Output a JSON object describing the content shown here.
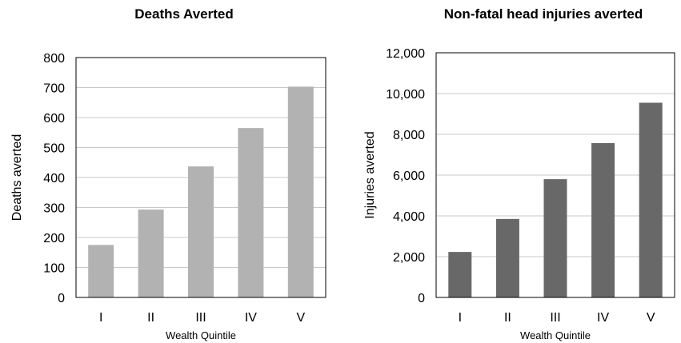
{
  "chart_data": [
    {
      "type": "bar",
      "title": "Deaths Averted",
      "xlabel": "Wealth Quintile",
      "ylabel": "Deaths averted",
      "categories": [
        "I",
        "II",
        "III",
        "IV",
        "V"
      ],
      "values": [
        175,
        293,
        437,
        565,
        703
      ],
      "ylim": [
        0,
        800
      ],
      "yticks": [
        "0",
        "100",
        "200",
        "300",
        "400",
        "500",
        "600",
        "700",
        "800"
      ],
      "bar_color": "#b2b2b2",
      "grid": true
    },
    {
      "type": "bar",
      "title": "Non-fatal head injuries averted",
      "xlabel": "Wealth Quintile",
      "ylabel": "Injuries averted",
      "categories": [
        "I",
        "II",
        "III",
        "IV",
        "V"
      ],
      "values": [
        2230,
        3850,
        5800,
        7570,
        9550
      ],
      "ylim": [
        0,
        12000
      ],
      "yticks": [
        "0",
        "2,000",
        "4,000",
        "6,000",
        "8,000",
        "10,000",
        "12,000"
      ],
      "bar_color": "#686868",
      "grid": true
    }
  ]
}
